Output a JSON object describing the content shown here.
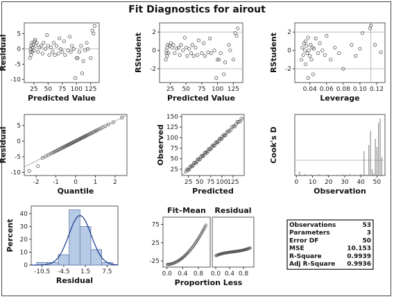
{
  "title": "Fit Diagnostics for airout",
  "chart_data": [
    {
      "type": "scatter",
      "name": "residual-vs-predicted",
      "xlabel": "Predicted Value",
      "ylabel": "Residual",
      "xlim": [
        8,
        140
      ],
      "ylim": [
        -11,
        8.5
      ],
      "xticks": [
        25,
        50,
        75,
        100,
        125
      ],
      "yticks": [
        -10,
        -5,
        0,
        5
      ],
      "refline_y": 0,
      "points": [
        [
          18,
          -3
        ],
        [
          19,
          -1
        ],
        [
          19,
          0
        ],
        [
          20,
          1
        ],
        [
          20,
          -2
        ],
        [
          21,
          2
        ],
        [
          22,
          -1
        ],
        [
          22,
          0.5
        ],
        [
          24,
          1.5
        ],
        [
          25,
          -0.5
        ],
        [
          26,
          2.5
        ],
        [
          27,
          3
        ],
        [
          28,
          1
        ],
        [
          30,
          2
        ],
        [
          32,
          -1
        ],
        [
          35,
          0.5
        ],
        [
          38,
          1
        ],
        [
          40,
          -1.5
        ],
        [
          42,
          2
        ],
        [
          45,
          0
        ],
        [
          48,
          4.5
        ],
        [
          50,
          1
        ],
        [
          52,
          -2
        ],
        [
          55,
          0.5
        ],
        [
          58,
          -1
        ],
        [
          60,
          2
        ],
        [
          62,
          -2
        ],
        [
          65,
          1
        ],
        [
          68,
          -1.5
        ],
        [
          70,
          3.5
        ],
        [
          72,
          0
        ],
        [
          75,
          -1
        ],
        [
          78,
          2.5
        ],
        [
          80,
          -2
        ],
        [
          85,
          -0.5
        ],
        [
          88,
          4
        ],
        [
          90,
          -1
        ],
        [
          92,
          1
        ],
        [
          95,
          0
        ],
        [
          98,
          -9.5
        ],
        [
          100,
          -3
        ],
        [
          102,
          -3
        ],
        [
          105,
          -1
        ],
        [
          108,
          1
        ],
        [
          110,
          -8
        ],
        [
          112,
          -4
        ],
        [
          115,
          -0.5
        ],
        [
          118,
          2
        ],
        [
          120,
          0
        ],
        [
          125,
          -3
        ],
        [
          128,
          6
        ],
        [
          130,
          5
        ],
        [
          132,
          7.5
        ]
      ]
    },
    {
      "type": "scatter",
      "name": "rstudent-vs-predicted",
      "xlabel": "Predicted Value",
      "ylabel": "RStudent",
      "xlim": [
        8,
        140
      ],
      "ylim": [
        -3.5,
        3
      ],
      "xticks": [
        25,
        50,
        75,
        100,
        125
      ],
      "yticks": [
        -2,
        0,
        2
      ],
      "refline_y": [
        -2,
        2
      ],
      "points": [
        [
          18,
          -1
        ],
        [
          19,
          -0.3
        ],
        [
          19,
          0
        ],
        [
          20,
          0.3
        ],
        [
          20,
          -0.6
        ],
        [
          21,
          0.6
        ],
        [
          22,
          -0.3
        ],
        [
          24,
          0.5
        ],
        [
          26,
          0.8
        ],
        [
          28,
          0.3
        ],
        [
          30,
          0.6
        ],
        [
          32,
          -0.3
        ],
        [
          35,
          0.2
        ],
        [
          38,
          0.3
        ],
        [
          40,
          -0.5
        ],
        [
          42,
          0.6
        ],
        [
          45,
          0
        ],
        [
          48,
          1.4
        ],
        [
          50,
          0.3
        ],
        [
          52,
          -0.6
        ],
        [
          55,
          0.2
        ],
        [
          58,
          -0.3
        ],
        [
          60,
          0.6
        ],
        [
          62,
          -0.6
        ],
        [
          65,
          0.3
        ],
        [
          68,
          -0.5
        ],
        [
          70,
          1.1
        ],
        [
          75,
          -0.3
        ],
        [
          78,
          0.8
        ],
        [
          80,
          -0.6
        ],
        [
          85,
          -0.2
        ],
        [
          88,
          1.3
        ],
        [
          90,
          -0.3
        ],
        [
          95,
          0
        ],
        [
          98,
          -3
        ],
        [
          100,
          -1
        ],
        [
          102,
          -1
        ],
        [
          105,
          -0.3
        ],
        [
          110,
          -2.6
        ],
        [
          112,
          -1.3
        ],
        [
          118,
          0.6
        ],
        [
          120,
          0
        ],
        [
          125,
          -1
        ],
        [
          128,
          1.9
        ],
        [
          130,
          1.6
        ],
        [
          132,
          2.4
        ]
      ]
    },
    {
      "type": "scatter",
      "name": "rstudent-vs-leverage",
      "xlabel": "Leverage",
      "ylabel": "RStudent",
      "xlim": [
        0.022,
        0.13
      ],
      "ylim": [
        -3.5,
        3
      ],
      "xticks": [
        0.04,
        0.06,
        0.08,
        0.1,
        0.12
      ],
      "xticklabels": [
        "0.04",
        "0.06",
        "0.08",
        "0.10",
        "0.12"
      ],
      "yticks": [
        -2,
        0,
        2
      ],
      "refline_y": [
        -2,
        2
      ],
      "refline_x": 0.113,
      "points": [
        [
          0.03,
          -1
        ],
        [
          0.031,
          0.3
        ],
        [
          0.032,
          -0.5
        ],
        [
          0.033,
          0.8
        ],
        [
          0.034,
          0
        ],
        [
          0.035,
          -1.5
        ],
        [
          0.035,
          1
        ],
        [
          0.036,
          0.5
        ],
        [
          0.037,
          -0.3
        ],
        [
          0.038,
          -3
        ],
        [
          0.038,
          1.4
        ],
        [
          0.039,
          0
        ],
        [
          0.04,
          -0.6
        ],
        [
          0.041,
          0.6
        ],
        [
          0.042,
          -1
        ],
        [
          0.043,
          0.3
        ],
        [
          0.044,
          -2.6
        ],
        [
          0.045,
          0.2
        ],
        [
          0.047,
          1.3
        ],
        [
          0.05,
          -0.3
        ],
        [
          0.052,
          0.8
        ],
        [
          0.055,
          0
        ],
        [
          0.058,
          -0.5
        ],
        [
          0.06,
          1.6
        ],
        [
          0.065,
          -1
        ],
        [
          0.07,
          0.3
        ],
        [
          0.075,
          -0.3
        ],
        [
          0.08,
          -2
        ],
        [
          0.09,
          0.6
        ],
        [
          0.095,
          -0.6
        ],
        [
          0.1,
          0.2
        ],
        [
          0.103,
          1.9
        ],
        [
          0.112,
          2.4
        ],
        [
          0.113,
          2.7
        ],
        [
          0.118,
          0.6
        ],
        [
          0.125,
          -0.2
        ]
      ]
    },
    {
      "type": "scatter",
      "name": "residual-qq",
      "xlabel": "Quantile",
      "ylabel": "Residual",
      "xlim": [
        -2.6,
        2.6
      ],
      "ylim": [
        -11,
        8.5
      ],
      "xticks": [
        -2,
        -1,
        0,
        1,
        2
      ],
      "yticks": [
        -10,
        -5,
        0,
        5
      ],
      "refline": [
        [
          -2.6,
          -8.3
        ],
        [
          2.6,
          8.3
        ]
      ]
    },
    {
      "type": "scatter",
      "name": "observed-vs-predicted",
      "xlabel": "Predicted",
      "ylabel": "Observed",
      "xlim": [
        10,
        150
      ],
      "ylim": [
        10,
        155
      ],
      "xticks": [
        25,
        50,
        75,
        100,
        125
      ],
      "yticks": [
        25,
        50,
        75,
        100,
        125,
        150
      ],
      "refline": [
        [
          10,
          10
        ],
        [
          150,
          150
        ]
      ]
    },
    {
      "type": "bar",
      "name": "cooks-d",
      "xlabel": "Observation",
      "ylabel": "Cook's D",
      "xlim": [
        -1,
        55
      ],
      "ylim": [
        0,
        0.3
      ],
      "xticks": [
        0,
        10,
        20,
        30,
        40,
        50
      ],
      "refline_y": 0.075,
      "values": [
        0.004,
        0.02,
        0.003,
        0.001,
        0.008,
        0.005,
        0.002,
        0.003,
        0.006,
        0.002,
        0.001,
        0.004,
        0.002,
        0.007,
        0.003,
        0.002,
        0.001,
        0.003,
        0.005,
        0.004,
        0.002,
        0.001,
        0.003,
        0.002,
        0.004,
        0.001,
        0.003,
        0.002,
        0.006,
        0.002,
        0.004,
        0.002,
        0.008,
        0.003,
        0.002,
        0.005,
        0.002,
        0.002,
        0.004,
        0.008,
        0.003,
        0.12,
        0.005,
        0.003,
        0.15,
        0.22,
        0.03,
        0.01,
        0.18,
        0.14,
        0.26,
        0.28,
        0.09
      ]
    },
    {
      "type": "histogram",
      "name": "residual-histogram",
      "xlabel": "Residual",
      "ylabel": "Percent",
      "xlim": [
        -13.5,
        10.5
      ],
      "ylim": [
        0,
        46
      ],
      "xticks": [
        -10.5,
        -4.5,
        1.5,
        7.5
      ],
      "xticklabels": [
        "-10.5",
        "-4.5",
        "1.5",
        "7.5"
      ],
      "yticks": [
        0,
        10,
        20,
        30,
        40
      ],
      "bins": [
        [
          -12,
          -9,
          2
        ],
        [
          -9,
          -6,
          2
        ],
        [
          -6,
          -3,
          8
        ],
        [
          -3,
          0,
          43
        ],
        [
          0,
          3,
          30
        ],
        [
          3,
          6,
          12
        ],
        [
          6,
          9,
          2
        ]
      ],
      "normal_mean": 0,
      "normal_sd": 3.1
    },
    {
      "type": "line",
      "name": "fit-mean",
      "title": "Fit–Mean",
      "xlim": [
        -0.1,
        1.1
      ],
      "ylim": [
        -42,
        95
      ],
      "xticks": [
        0,
        0.4,
        0.8
      ],
      "xticklabels": [
        "0.0",
        "0.4",
        "0.8"
      ],
      "yticks": [
        -25,
        25,
        75
      ]
    },
    {
      "type": "line",
      "name": "residual-spread",
      "title": "Residual",
      "xlim": [
        -0.1,
        1.1
      ],
      "ylim": [
        -42,
        95
      ],
      "xticks": [
        0,
        0.4,
        0.8
      ],
      "xticklabels": [
        "0.0",
        "0.4",
        "0.8"
      ],
      "shared_xlabel": "Proportion Less"
    },
    {
      "type": "table",
      "name": "fit-statistics",
      "rows": [
        [
          "Observations",
          "53"
        ],
        [
          "Parameters",
          "3"
        ],
        [
          "Error DF",
          "50"
        ],
        [
          "MSE",
          "10.153"
        ],
        [
          "R-Square",
          "0.9939"
        ],
        [
          "Adj R-Square",
          "0.9936"
        ]
      ]
    }
  ]
}
